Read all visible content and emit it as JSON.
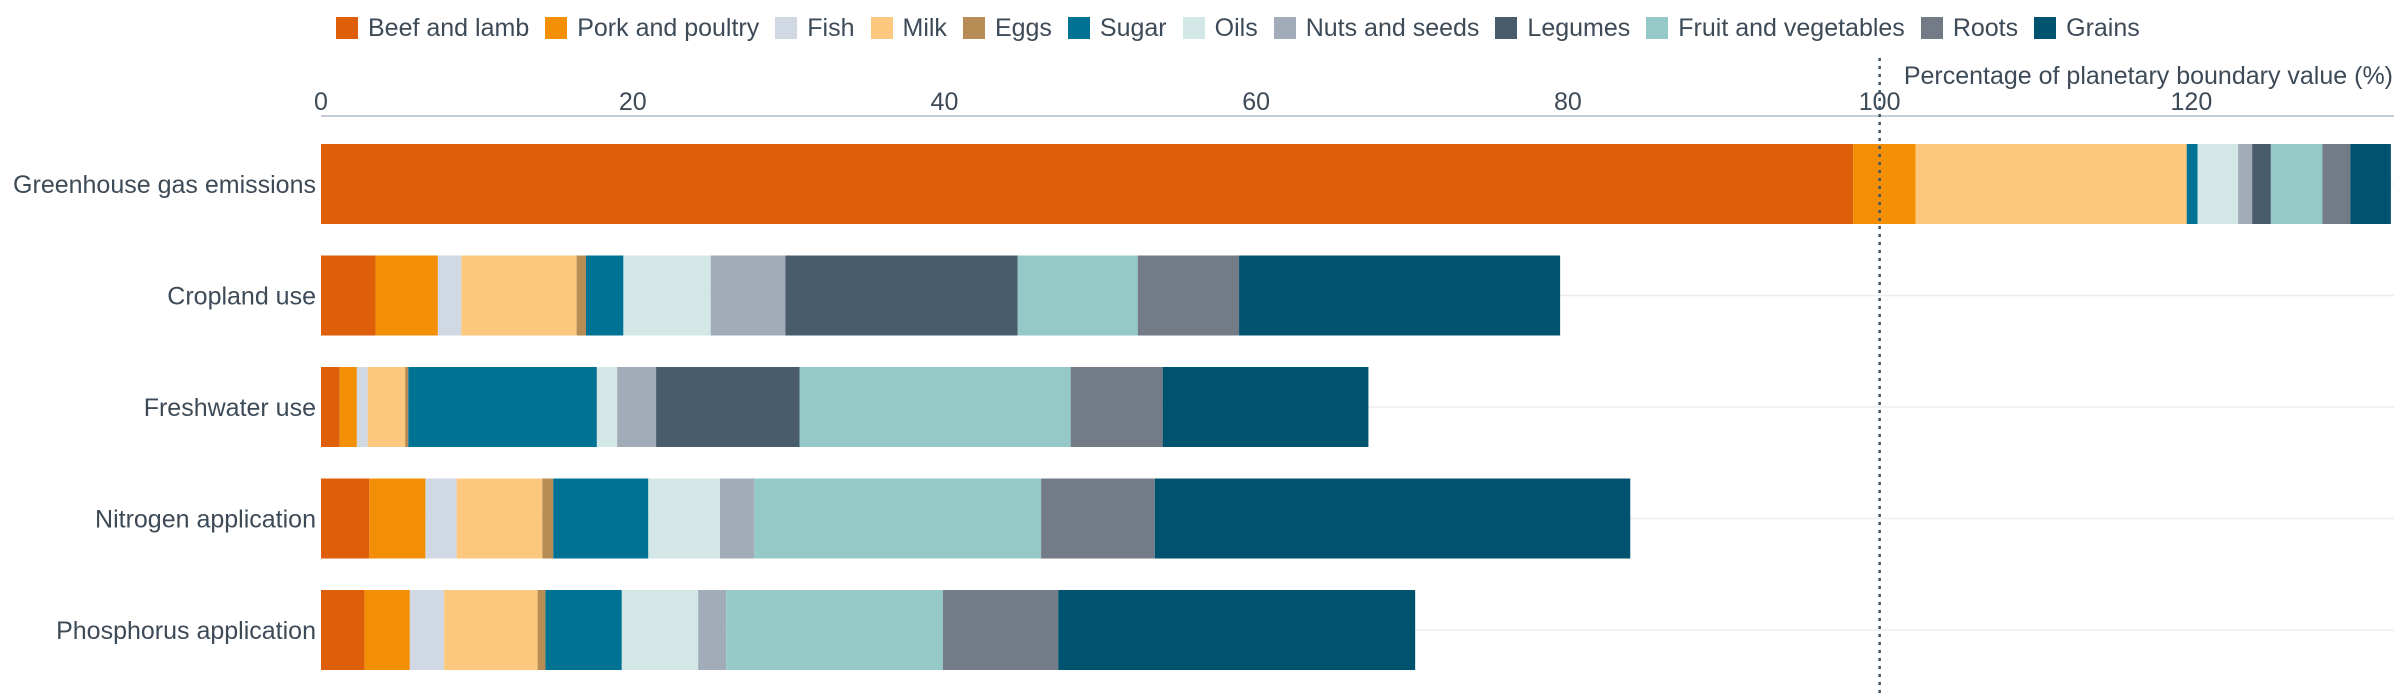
{
  "chart_data": {
    "type": "bar",
    "orientation": "horizontal",
    "stacked": true,
    "title": "",
    "xlabel": "Percentage of planetary boundary value (%)",
    "ylabel": "",
    "xlim": [
      0,
      133
    ],
    "xticks": [
      0,
      20,
      40,
      60,
      80,
      100,
      120
    ],
    "reference_line": 100,
    "legend_position": "top",
    "grid": true,
    "categories": [
      "Greenhouse gas emissions",
      "Cropland use",
      "Freshwater use",
      "Nitrogen application",
      "Phosphorus application"
    ],
    "series": [
      {
        "name": "Beef and lamb",
        "color": "#de5e0a",
        "values": [
          98.3,
          3.5,
          1.2,
          3.1,
          2.8
        ]
      },
      {
        "name": "Pork and poultry",
        "color": "#f28f05",
        "values": [
          4.0,
          4.0,
          1.1,
          3.6,
          2.9
        ]
      },
      {
        "name": "Fish",
        "color": "#d0d9e3",
        "values": [
          0.0,
          1.5,
          0.7,
          2.0,
          2.2
        ]
      },
      {
        "name": "Milk",
        "color": "#fbc87d",
        "values": [
          17.4,
          7.4,
          2.4,
          5.5,
          6.0
        ]
      },
      {
        "name": "Eggs",
        "color": "#b88c55",
        "values": [
          0.0,
          0.6,
          0.2,
          0.7,
          0.5
        ]
      },
      {
        "name": "Sugar",
        "color": "#007394",
        "values": [
          0.7,
          2.4,
          12.1,
          6.1,
          4.9
        ]
      },
      {
        "name": "Oils",
        "color": "#d3e8e6",
        "values": [
          2.6,
          5.6,
          1.3,
          4.6,
          4.9
        ]
      },
      {
        "name": "Nuts and seeds",
        "color": "#a1acb8",
        "values": [
          0.9,
          4.8,
          2.5,
          2.2,
          1.8
        ]
      },
      {
        "name": "Legumes",
        "color": "#485c6c",
        "values": [
          1.2,
          14.9,
          9.2,
          0.0,
          0.0
        ]
      },
      {
        "name": "Fruit and vegetables",
        "color": "#94c9c8",
        "values": [
          3.3,
          7.7,
          17.4,
          18.4,
          13.9
        ]
      },
      {
        "name": "Roots",
        "color": "#737b86",
        "values": [
          1.8,
          6.5,
          5.9,
          7.3,
          7.4
        ]
      },
      {
        "name": "Grains",
        "color": "#00536e",
        "values": [
          2.6,
          20.6,
          13.2,
          30.5,
          22.9
        ]
      }
    ]
  }
}
